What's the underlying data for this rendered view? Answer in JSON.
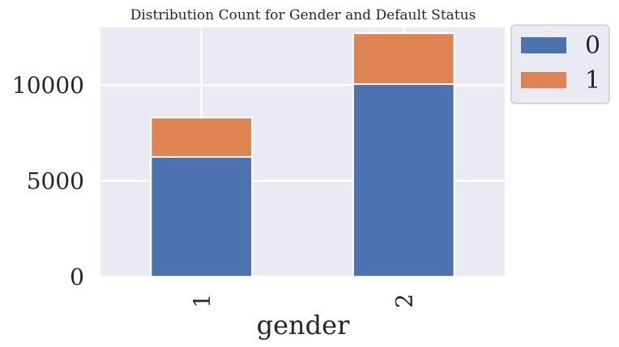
{
  "chart_data": {
    "type": "bar",
    "stacked": true,
    "title": "Distribution Count for Gender and Default Status",
    "xlabel": "gender",
    "ylabel": "",
    "categories": [
      "1",
      "2"
    ],
    "series": [
      {
        "name": "0",
        "values": [
          6250,
          10050
        ],
        "color": "#4c72b0"
      },
      {
        "name": "1",
        "values": [
          2050,
          2650
        ],
        "color": "#dd8452"
      }
    ],
    "ylim": [
      0,
      13000
    ],
    "yticks": [
      0,
      5000,
      10000
    ],
    "ytick_labels": [
      "0",
      "5000",
      "10000"
    ],
    "grid": true,
    "legend_position": "outside-top-right",
    "background_color": "#eaeaf2",
    "grid_color": "#ffffff"
  }
}
